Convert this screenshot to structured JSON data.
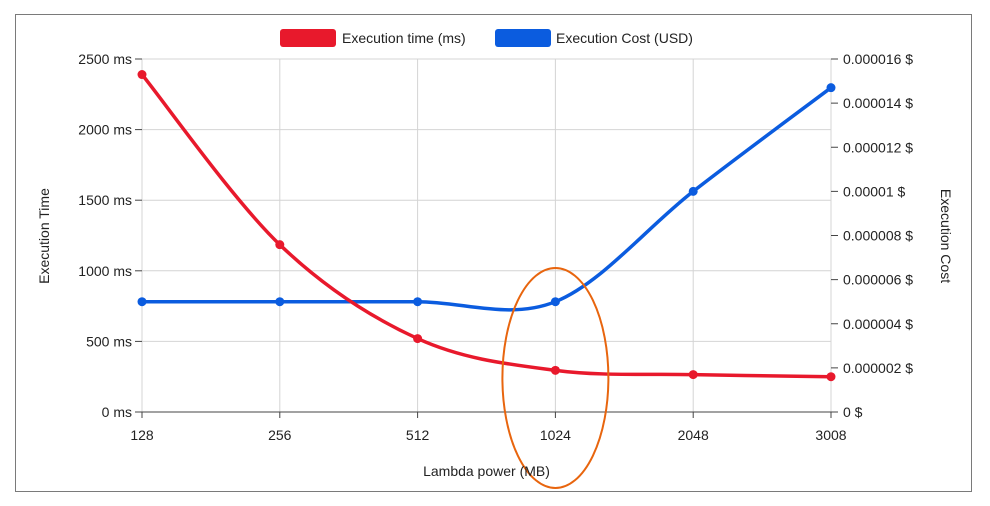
{
  "chart_data": {
    "type": "line",
    "xlabel": "Lambda power (MB)",
    "ylabel_left": "Execution Time",
    "ylabel_right": "Execution Cost",
    "categories": [
      "128",
      "256",
      "512",
      "1024",
      "2048",
      "3008"
    ],
    "left_axis": {
      "ylim": [
        0,
        2500
      ],
      "tick_values": [
        0,
        500,
        1000,
        1500,
        2000,
        2500
      ],
      "tick_labels": [
        "0 ms",
        "500 ms",
        "1000 ms",
        "1500 ms",
        "2000 ms",
        "2500 ms"
      ]
    },
    "right_axis": {
      "ylim": [
        0,
        1.6e-05
      ],
      "tick_values": [
        0,
        2e-06,
        4e-06,
        6e-06,
        8e-06,
        1e-05,
        1.2e-05,
        1.4e-05,
        1.6e-05
      ],
      "tick_labels": [
        "0 $",
        "0.000002 $",
        "0.000004 $",
        "0.000006 $",
        "0.000008 $",
        "0.00001 $",
        "0.000012 $",
        "0.000014 $",
        "0.000016 $"
      ]
    },
    "series": [
      {
        "name": "Execution time (ms)",
        "axis": "left",
        "color": "#e8192c",
        "values": [
          2390,
          1185,
          520,
          295,
          265,
          250
        ]
      },
      {
        "name": "Execution Cost (USD)",
        "axis": "right",
        "color": "#0b5cdf",
        "values": [
          5e-06,
          5e-06,
          5e-06,
          5e-06,
          1e-05,
          1.47e-05
        ]
      }
    ],
    "grid": true,
    "legend_position": "top-center",
    "annotation": {
      "shape": "ellipse",
      "around_category": "1024",
      "color": "#e8650e"
    }
  }
}
